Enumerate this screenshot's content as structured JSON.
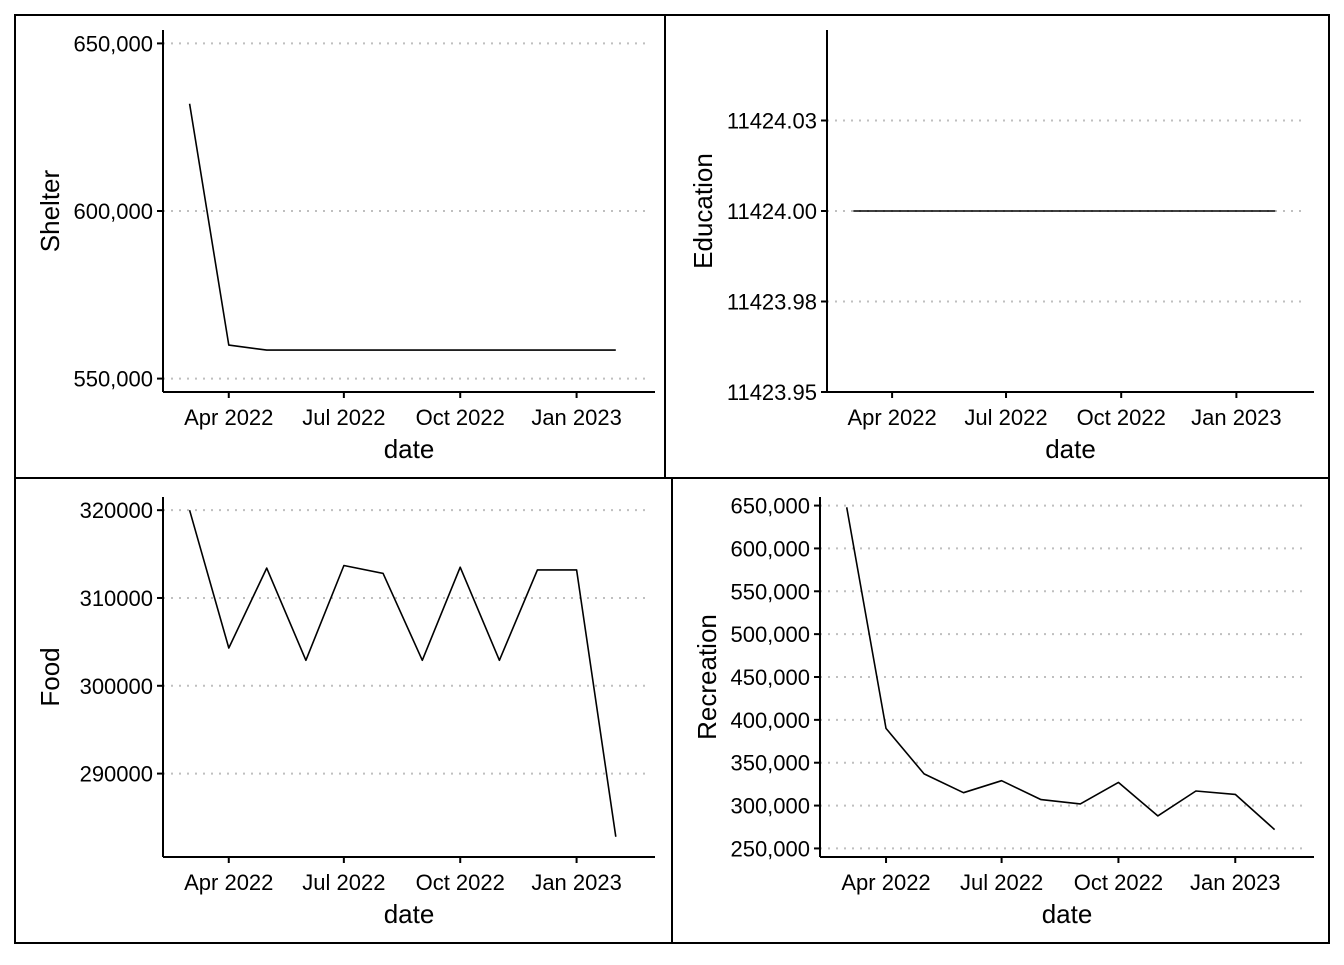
{
  "chart_data": [
    {
      "type": "line",
      "xlabel": "date",
      "ylabel": "Shelter",
      "x": [
        "2022-03",
        "2022-04",
        "2022-05",
        "2022-06",
        "2022-07",
        "2022-08",
        "2022-09",
        "2022-10",
        "2022-11",
        "2022-12",
        "2023-01",
        "2023-02"
      ],
      "values": [
        632000,
        560000,
        558500,
        558500,
        558500,
        558500,
        558500,
        558500,
        558500,
        558500,
        558500,
        558500
      ],
      "yticks": [
        550000,
        600000,
        650000
      ],
      "ytick_labels": [
        "550,000",
        "600,000",
        "650,000"
      ],
      "ylim": [
        546000,
        654000
      ],
      "xticks": [
        "2022-04",
        "2022-07",
        "2022-10",
        "2023-01"
      ],
      "xtick_labels": [
        "Apr 2022",
        "Jul 2022",
        "Oct 2022",
        "Jan 2023"
      ],
      "grid": "horizontal dotted"
    },
    {
      "type": "line",
      "xlabel": "date",
      "ylabel": "Education",
      "x": [
        "2022-03",
        "2022-04",
        "2022-05",
        "2022-06",
        "2022-07",
        "2022-08",
        "2022-09",
        "2022-10",
        "2022-11",
        "2022-12",
        "2023-01",
        "2023-02"
      ],
      "values": [
        11424.0,
        11424.0,
        11424.0,
        11424.0,
        11424.0,
        11424.0,
        11424.0,
        11424.0,
        11424.0,
        11424.0,
        11424.0,
        11424.0
      ],
      "yticks": [
        11423.95,
        11423.975,
        11424.0,
        11424.025
      ],
      "ytick_labels": [
        "11423.95",
        "11423.98",
        "11424.00",
        "11424.03"
      ],
      "ylim": [
        11423.95,
        11424.05
      ],
      "xticks": [
        "2022-04",
        "2022-07",
        "2022-10",
        "2023-01"
      ],
      "xtick_labels": [
        "Apr 2022",
        "Jul 2022",
        "Oct 2022",
        "Jan 2023"
      ],
      "grid": "horizontal dotted"
    },
    {
      "type": "line",
      "xlabel": "date",
      "ylabel": "Food",
      "x": [
        "2022-03",
        "2022-04",
        "2022-05",
        "2022-06",
        "2022-07",
        "2022-08",
        "2022-09",
        "2022-10",
        "2022-11",
        "2022-12",
        "2023-01",
        "2023-02"
      ],
      "values": [
        320000,
        304300,
        313400,
        302900,
        313700,
        312800,
        302900,
        313500,
        302900,
        313200,
        313200,
        282800
      ],
      "yticks": [
        290000,
        300000,
        310000,
        320000
      ],
      "ytick_labels": [
        "290000",
        "300000",
        "310000",
        "320000"
      ],
      "ylim": [
        280500,
        321500
      ],
      "xticks": [
        "2022-04",
        "2022-07",
        "2022-10",
        "2023-01"
      ],
      "xtick_labels": [
        "Apr 2022",
        "Jul 2022",
        "Oct 2022",
        "Jan 2023"
      ],
      "grid": "horizontal dotted"
    },
    {
      "type": "line",
      "xlabel": "date",
      "ylabel": "Recreation",
      "x": [
        "2022-03",
        "2022-04",
        "2022-05",
        "2022-06",
        "2022-07",
        "2022-08",
        "2022-09",
        "2022-10",
        "2022-11",
        "2022-12",
        "2023-01",
        "2023-02"
      ],
      "values": [
        648000,
        390000,
        337000,
        315000,
        329000,
        307000,
        302000,
        327000,
        288000,
        317000,
        313000,
        272000
      ],
      "yticks": [
        250000,
        300000,
        350000,
        400000,
        450000,
        500000,
        550000,
        600000,
        650000
      ],
      "ytick_labels": [
        "250,000",
        "300,000",
        "350,000",
        "400,000",
        "450,000",
        "500,000",
        "550,000",
        "600,000",
        "650,000"
      ],
      "ylim": [
        240000,
        660000
      ],
      "xticks": [
        "2022-04",
        "2022-07",
        "2022-10",
        "2023-01"
      ],
      "xtick_labels": [
        "Apr 2022",
        "Jul 2022",
        "Oct 2022",
        "Jan 2023"
      ],
      "grid": "horizontal dotted"
    }
  ]
}
